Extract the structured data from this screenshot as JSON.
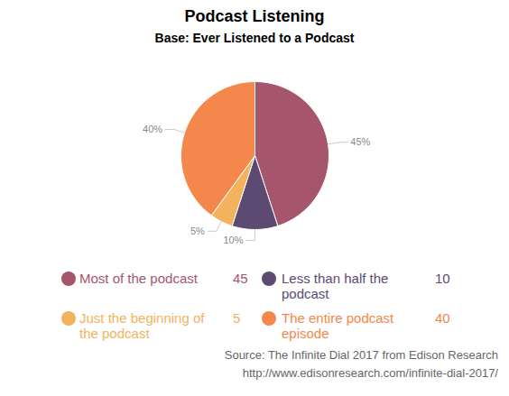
{
  "chart_data": {
    "type": "pie",
    "title": "Podcast Listening",
    "subtitle": "Base: Ever Listened to a Podcast",
    "categories": [
      "Most of the podcast",
      "Less than half the podcast",
      "Just the beginning of the podcast",
      "The entire podcast episode"
    ],
    "values": [
      45,
      10,
      5,
      40
    ],
    "value_labels": [
      "45%",
      "10%",
      "5%",
      "40%"
    ],
    "colors": [
      "#a5566d",
      "#5d4a72",
      "#f3b25d",
      "#f4874b"
    ],
    "data_labels": true,
    "legend": "bottom",
    "source": [
      "Source: The Infinite Dial 2017 from Edison Research",
      "http://www.edisonresearch.com/infinite-dial-2017/"
    ]
  }
}
